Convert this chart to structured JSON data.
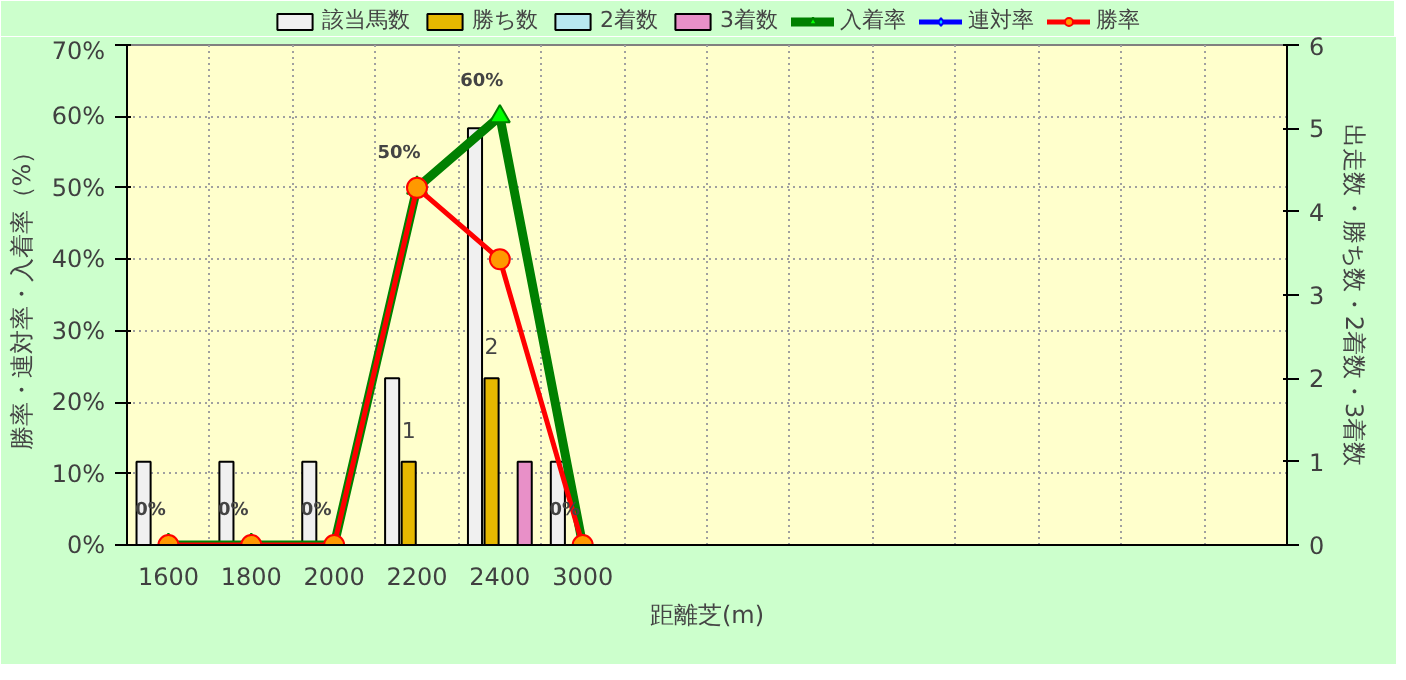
{
  "chart_data": {
    "type": "bar",
    "xlabel": "距離芝(m)",
    "ylabel": "勝率・連対率・入着率（%）",
    "y2label": "出走数・勝ち数・2着数・3着数",
    "categories": [
      "1600",
      "1800",
      "2000",
      "2200",
      "2400",
      "3000",
      null,
      null,
      null,
      null,
      null,
      null,
      null,
      null
    ],
    "series": [
      {
        "name": "該当馬数",
        "axis": "y2",
        "color": "#f0f0f0",
        "values": [
          1,
          1,
          1,
          2,
          5,
          1,
          null,
          null,
          null,
          null,
          null,
          null,
          null,
          null
        ]
      },
      {
        "name": "勝ち数",
        "axis": "y2",
        "color": "#e6b800",
        "values": [
          0,
          0,
          0,
          1,
          2,
          0,
          null,
          null,
          null,
          null,
          null,
          null,
          null,
          null
        ],
        "value_labels": [
          null,
          null,
          null,
          "1",
          "2",
          null,
          null,
          null,
          null,
          null,
          null,
          null,
          null,
          null
        ]
      },
      {
        "name": "2着数",
        "axis": "y2",
        "color": "#b8e8f0",
        "values": [
          0,
          0,
          0,
          0,
          0,
          0,
          null,
          null,
          null,
          null,
          null,
          null,
          null,
          null
        ]
      },
      {
        "name": "3着数",
        "axis": "y2",
        "color": "#e890c8",
        "values": [
          0,
          0,
          0,
          0,
          1,
          0,
          null,
          null,
          null,
          null,
          null,
          null,
          null,
          null
        ]
      },
      {
        "name": "入着率",
        "type": "line",
        "axis": "y",
        "color": "#008000",
        "marker": "triangle",
        "values": [
          0,
          0,
          0,
          50,
          60,
          0,
          null,
          null,
          null,
          null,
          null,
          null,
          null,
          null
        ],
        "value_labels": [
          "0%",
          "0%",
          "0%",
          "50%",
          "60%",
          "0%",
          null,
          null,
          null,
          null,
          null,
          null,
          null,
          null
        ]
      },
      {
        "name": "連対率",
        "type": "line",
        "axis": "y",
        "color": "#0000ff",
        "marker": "diamond",
        "values": [
          null,
          null,
          null,
          null,
          null,
          null,
          null,
          null,
          null,
          null,
          null,
          null,
          null,
          null
        ]
      },
      {
        "name": "勝率",
        "type": "line",
        "axis": "y",
        "color": "#ff0000",
        "marker": "circle",
        "values": [
          0,
          0,
          0,
          50,
          40,
          0,
          null,
          null,
          null,
          null,
          null,
          null,
          null,
          null
        ]
      }
    ],
    "ylim": [
      0,
      70
    ],
    "yticks": [
      {
        "value": 0,
        "label": "0%"
      },
      {
        "value": 10,
        "label": "10%"
      },
      {
        "value": 20,
        "label": "20%"
      },
      {
        "value": 30,
        "label": "30%"
      },
      {
        "value": 40,
        "label": "40%"
      },
      {
        "value": 50,
        "label": "50%"
      },
      {
        "value": 60,
        "label": "60%"
      },
      {
        "value": 70,
        "label": "70%"
      }
    ],
    "y2lim": [
      0,
      6
    ],
    "y2ticks": [
      0,
      1,
      2,
      3,
      4,
      5,
      6
    ],
    "grid": true,
    "legend": "top"
  }
}
